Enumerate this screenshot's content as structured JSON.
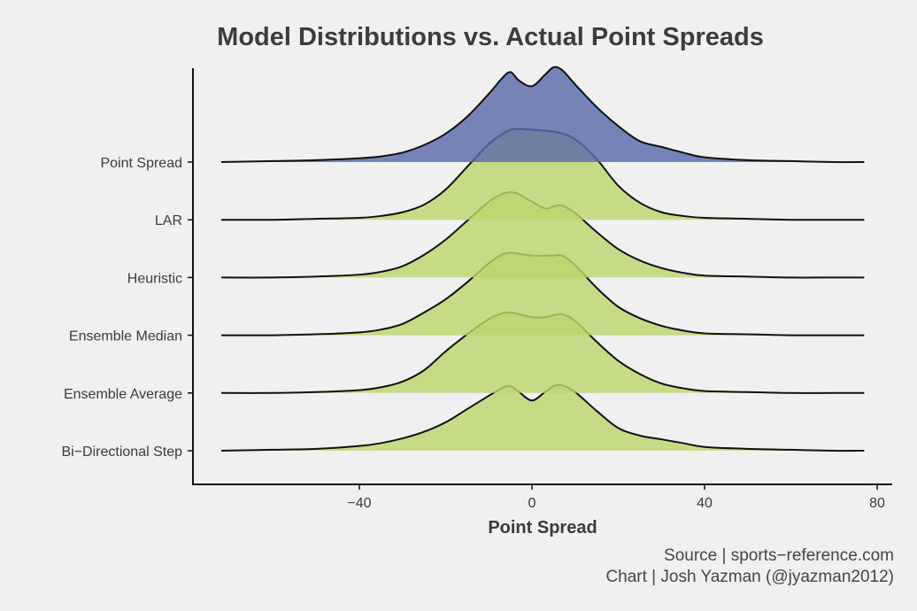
{
  "chart_data": {
    "type": "ridgeline",
    "title": "Model Distributions vs. Actual Point Spreads",
    "xlabel": "Point Spread",
    "ylabel": "",
    "xlim": [
      -72,
      77
    ],
    "x_ticks": [
      -40,
      0,
      40,
      80
    ],
    "x_tick_labels": [
      "−40",
      "0",
      "40",
      "80"
    ],
    "grid": false,
    "legend": "none",
    "colors": {
      "point_spread": "#5b6aa8",
      "models": "#bcd66e"
    },
    "x": [
      -72,
      -60,
      -50,
      -40,
      -35,
      -30,
      -25,
      -20,
      -15,
      -10,
      -7,
      -5,
      -3,
      0,
      3,
      5,
      7,
      10,
      15,
      20,
      25,
      30,
      35,
      40,
      50,
      60,
      70,
      77
    ],
    "series": [
      {
        "name": "Point Spread",
        "color": "#5b6aa8",
        "values": [
          0.0,
          0.01,
          0.02,
          0.04,
          0.06,
          0.1,
          0.18,
          0.3,
          0.48,
          0.72,
          0.88,
          0.95,
          0.86,
          0.8,
          0.92,
          1.0,
          0.97,
          0.82,
          0.58,
          0.38,
          0.22,
          0.16,
          0.1,
          0.05,
          0.02,
          0.01,
          0.0,
          0.0
        ]
      },
      {
        "name": "LAR",
        "color": "#bcd66e",
        "values": [
          0.0,
          0.0,
          0.01,
          0.02,
          0.04,
          0.08,
          0.16,
          0.32,
          0.56,
          0.8,
          0.9,
          0.95,
          0.96,
          0.95,
          0.94,
          0.93,
          0.91,
          0.85,
          0.64,
          0.36,
          0.18,
          0.08,
          0.04,
          0.02,
          0.01,
          0.0,
          0.0,
          0.0
        ]
      },
      {
        "name": "Heuristic",
        "color": "#bcd66e",
        "values": [
          0.0,
          0.0,
          0.01,
          0.03,
          0.06,
          0.12,
          0.24,
          0.4,
          0.6,
          0.8,
          0.88,
          0.9,
          0.88,
          0.8,
          0.73,
          0.75,
          0.76,
          0.68,
          0.48,
          0.3,
          0.18,
          0.1,
          0.05,
          0.02,
          0.01,
          0.0,
          0.0,
          0.0
        ]
      },
      {
        "name": "Ensemble Median",
        "color": "#bcd66e",
        "values": [
          0.0,
          0.0,
          0.01,
          0.03,
          0.06,
          0.12,
          0.24,
          0.38,
          0.56,
          0.76,
          0.85,
          0.87,
          0.86,
          0.84,
          0.84,
          0.84,
          0.84,
          0.74,
          0.5,
          0.3,
          0.18,
          0.1,
          0.05,
          0.02,
          0.01,
          0.0,
          0.0,
          0.0
        ]
      },
      {
        "name": "Ensemble Average",
        "color": "#bcd66e",
        "values": [
          0.0,
          0.0,
          0.01,
          0.03,
          0.06,
          0.12,
          0.24,
          0.44,
          0.62,
          0.78,
          0.84,
          0.85,
          0.83,
          0.8,
          0.8,
          0.82,
          0.83,
          0.76,
          0.54,
          0.34,
          0.2,
          0.1,
          0.05,
          0.02,
          0.01,
          0.0,
          0.0,
          0.0
        ]
      },
      {
        "name": "Bi-Directional Step",
        "color": "#bcd66e",
        "values": [
          0.0,
          0.01,
          0.02,
          0.05,
          0.08,
          0.13,
          0.2,
          0.3,
          0.44,
          0.58,
          0.66,
          0.68,
          0.62,
          0.53,
          0.62,
          0.68,
          0.69,
          0.62,
          0.42,
          0.24,
          0.16,
          0.12,
          0.08,
          0.04,
          0.02,
          0.01,
          0.0,
          0.0
        ]
      }
    ]
  },
  "y_tick_labels": [
    "Point Spread",
    "LAR",
    "Heuristic",
    "Ensemble Median",
    "Ensemble Average",
    "Bi−Directional Step"
  ],
  "caption": {
    "source": "Source | sports−reference.com",
    "author": "Chart | Josh Yazman (@jyazman2012)"
  }
}
